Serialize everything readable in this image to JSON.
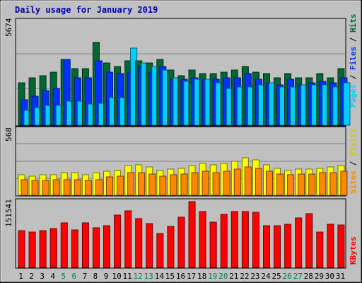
{
  "chart_data": {
    "type": "bar",
    "title": "Daily usage for January 2019",
    "days": [
      "1",
      "2",
      "3",
      "4",
      "5",
      "6",
      "7",
      "8",
      "9",
      "10",
      "11",
      "12",
      "13",
      "14",
      "15",
      "16",
      "17",
      "18",
      "19",
      "20",
      "21",
      "22",
      "23",
      "24",
      "25",
      "26",
      "27",
      "28",
      "29",
      "30",
      "31"
    ],
    "weekend_days": [
      "5",
      "6",
      "12",
      "13",
      "19",
      "20",
      "26",
      "27"
    ],
    "panels": [
      {
        "key": "hits_panel",
        "max_label": "5674",
        "ymax": 5674,
        "series": [
          {
            "name": "Hits",
            "color": "#006633",
            "values": [
              2300,
              2600,
              2700,
              2900,
              3600,
              3100,
              3100,
              4500,
              3400,
              3200,
              3500,
              3500,
              3400,
              3600,
              3000,
              2700,
              3000,
              2800,
              2800,
              2900,
              3000,
              3200,
              2900,
              2800,
              2600,
              2800,
              2600,
              2600,
              2800,
              2600,
              3100
            ]
          },
          {
            "name": "Files",
            "color": "#0033ff",
            "values": [
              1400,
              1600,
              1900,
              2000,
              3600,
              2600,
              2600,
              3500,
              2900,
              2800,
              2900,
              3200,
              2900,
              3200,
              2500,
              2500,
              2600,
              2500,
              2500,
              2600,
              2600,
              2800,
              2500,
              2300,
              2200,
              2500,
              2200,
              2300,
              2400,
              2300,
              2600
            ]
          },
          {
            "name": "Pages",
            "color": "#00ccff",
            "values": [
              800,
              950,
              1100,
              1100,
              1300,
              1300,
              1150,
              1200,
              1500,
              1500,
              4200,
              3400,
              3200,
              3000,
              2600,
              2400,
              2500,
              2500,
              2300,
              2000,
              2100,
              2100,
              2200,
              2300,
              2100,
              2100,
              2200,
              2200,
              2200,
              2100,
              2300
            ]
          }
        ]
      },
      {
        "key": "visits_panel",
        "max_label": "568",
        "ymax": 568,
        "series": [
          {
            "name": "Visits",
            "color": "#ffff00",
            "values": [
              180,
              170,
              180,
              180,
              200,
              200,
              180,
              200,
              210,
              220,
              260,
              270,
              250,
              220,
              230,
              240,
              260,
              280,
              270,
              280,
              300,
              330,
              310,
              270,
              240,
              220,
              230,
              230,
              240,
              250,
              260
            ]
          },
          {
            "name": "Sites",
            "color": "#ff8800",
            "values": [
              140,
              130,
              130,
              140,
              140,
              140,
              130,
              140,
              160,
              170,
              200,
              200,
              190,
              170,
              180,
              190,
              200,
              210,
              200,
              210,
              230,
              250,
              240,
              210,
              190,
              180,
              190,
              190,
              200,
              200,
              210
            ]
          }
        ]
      },
      {
        "key": "kbytes_panel",
        "max_label": "151541",
        "ymax": 151541,
        "series": [
          {
            "name": "KBytes",
            "color": "#ff0000",
            "values": [
              85000,
              82000,
              84000,
              90000,
              103000,
              86000,
              102000,
              91000,
              96000,
              121000,
              131000,
              112000,
              101000,
              79000,
              94000,
              115000,
              151541,
              128000,
              105000,
              122000,
              129000,
              129000,
              127000,
              96000,
              96000,
              100000,
              114000,
              124000,
              81000,
              100000,
              98000
            ]
          }
        ]
      }
    ]
  }
}
